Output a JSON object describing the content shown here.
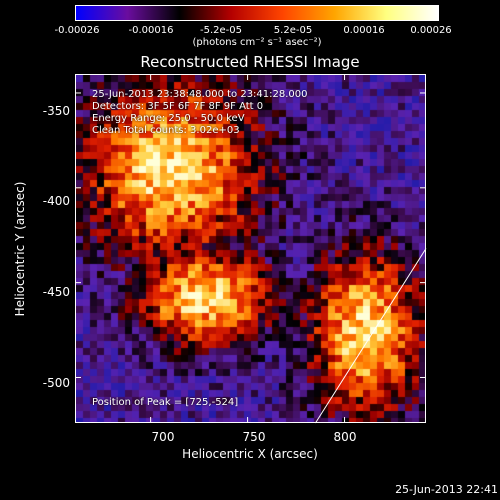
{
  "chart_data": {
    "type": "heatmap",
    "title": "Reconstructed RHESSI Image",
    "xlabel": "Heliocentric X (arcsec)",
    "ylabel": "Heliocentric Y (arcsec)",
    "xlim": [
      661,
      842
    ],
    "ylim": [
      -524,
      -340
    ],
    "x_ticks": [
      700,
      750,
      800
    ],
    "y_ticks": [
      -350,
      -400,
      -450,
      -500
    ],
    "colorbar": {
      "ticks": [
        "-0.00026",
        "-0.00016",
        "-5.2e-05",
        "5.2e-05",
        "0.00016",
        "0.00026"
      ],
      "tick_values": [
        -0.00026,
        -0.00016,
        -5.2e-05,
        5.2e-05,
        0.00016,
        0.00026
      ],
      "unit_label": "(photons cm⁻² s⁻¹ asec⁻²)",
      "colormap": [
        "#0000ff",
        "#6a0d9e",
        "#000000",
        "#b40000",
        "#ff4500",
        "#ffa500",
        "#ffff80",
        "#ffffff"
      ]
    },
    "annotations": {
      "time_range": "25-Jun-2013 23:38:48.000 to 23:41:28.000",
      "detectors": "Detectors: 3F 5F 6F 7F 8F 9F Att 0",
      "energy_range": "Energy Range: 25.0 - 50.0 keV",
      "method_counts": "Clean    Total counts: 3.02e+03",
      "peak": "Position of Peak = [725,-524]"
    },
    "bright_regions": [
      {
        "name": "upper-left arc",
        "x_range": [
          661,
          760
        ],
        "y_range": [
          -440,
          -340
        ],
        "level": "high"
      },
      {
        "name": "central loop",
        "x_range": [
          690,
          765
        ],
        "y_range": [
          -485,
          -430
        ],
        "level": "high"
      },
      {
        "name": "lower-right arc",
        "x_range": [
          780,
          842
        ],
        "y_range": [
          -524,
          -430
        ],
        "level": "high"
      }
    ],
    "solar_limb": {
      "points": [
        [
          785,
          -524
        ],
        [
          842,
          -432
        ]
      ],
      "color": "#ffffff"
    }
  },
  "footer": {
    "timestamp": "25-Jun-2013 22:41"
  }
}
